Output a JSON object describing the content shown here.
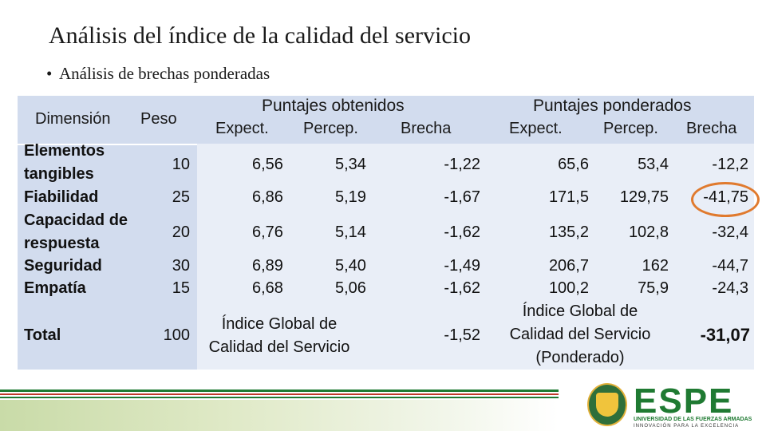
{
  "title": "Análisis del índice de la calidad del servicio",
  "bullet": "Análisis de brechas ponderadas",
  "headers": {
    "dimension": "Dimensión",
    "peso": "Peso",
    "obtenidos": "Puntajes obtenidos",
    "ponderados": "Puntajes ponderados",
    "expect": "Expect.",
    "percep": "Percep.",
    "brecha": "Brecha"
  },
  "rows": [
    {
      "dim1": "Elementos",
      "dim2": "tangibles",
      "peso": "10",
      "expect": "6,56",
      "percep": "5,34",
      "brecha": "-1,22",
      "p_expect": "65,6",
      "p_percep": "53,4",
      "p_brecha": "-12,2"
    },
    {
      "dim1": "Fiabilidad",
      "dim2": "",
      "peso": "25",
      "expect": "6,86",
      "percep": "5,19",
      "brecha": "-1,67",
      "p_expect": "171,5",
      "p_percep": "129,75",
      "p_brecha": "-41,75"
    },
    {
      "dim1": "Capacidad de",
      "dim2": "respuesta",
      "peso": "20",
      "expect": "6,76",
      "percep": "5,14",
      "brecha": "-1,62",
      "p_expect": "135,2",
      "p_percep": "102,8",
      "p_brecha": "-32,4"
    },
    {
      "dim1": "Seguridad",
      "dim2": "",
      "peso": "30",
      "expect": "6,89",
      "percep": "5,40",
      "brecha": "-1,49",
      "p_expect": "206,7",
      "p_percep": "162",
      "p_brecha": "-44,7"
    },
    {
      "dim1": "Empatía",
      "dim2": "",
      "peso": "15",
      "expect": "6,68",
      "percep": "5,06",
      "brecha": "-1,62",
      "p_expect": "100,2",
      "p_percep": "75,9",
      "p_brecha": "-24,3"
    }
  ],
  "total": {
    "label": "Total",
    "peso": "100",
    "global1": "Índice Global de",
    "global2": "Calidad del Servicio",
    "brecha": "-1,52",
    "pond1": "Índice Global de",
    "pond2": "Calidad del Servicio",
    "pond3": "(Ponderado)",
    "pond_value": "-31,07"
  },
  "highlight_color": "#e07a2e",
  "logo": {
    "name": "ESPE",
    "university": "UNIVERSIDAD DE LAS FUERZAS ARMADAS",
    "tagline": "INNOVACIÓN PARA LA EXCELENCIA"
  }
}
